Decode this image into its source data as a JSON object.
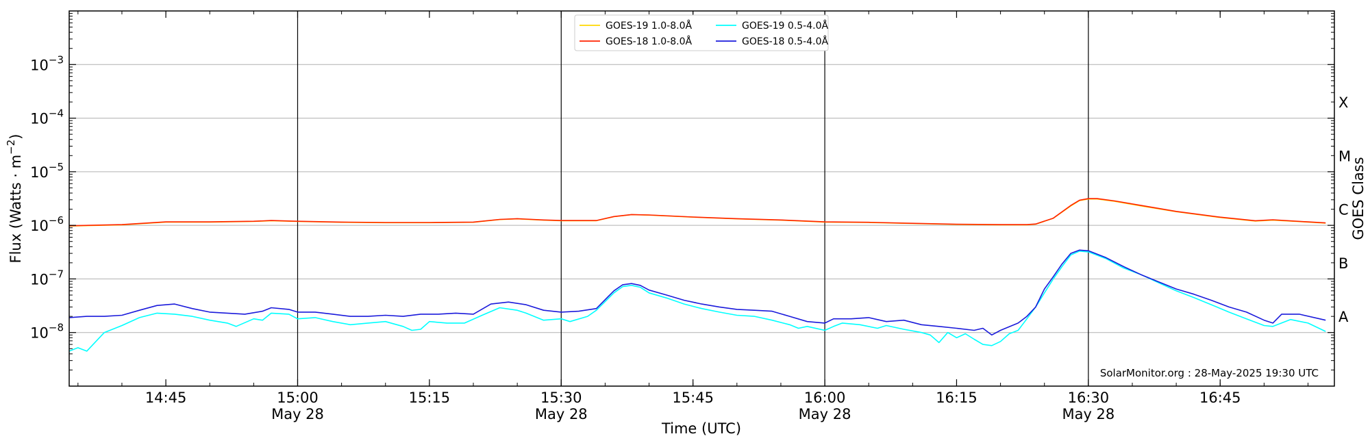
{
  "chart_data": {
    "type": "line",
    "xlabel": "Time (UTC)",
    "ylabel": "Flux (Watts · m",
    "ylabel_exponent": "−2",
    "ylabel_close": ")",
    "right_label": "GOES Class",
    "y_scale": "log",
    "ylim": [
      1e-09,
      0.01
    ],
    "xlim": [
      "14:34",
      "16:58"
    ],
    "y_ticks": [
      {
        "value": 1e-08,
        "base": "10",
        "exp": "−8"
      },
      {
        "value": 1e-07,
        "base": "10",
        "exp": "−7"
      },
      {
        "value": 1e-06,
        "base": "10",
        "exp": "−6"
      },
      {
        "value": 1e-05,
        "base": "10",
        "exp": "−5"
      },
      {
        "value": 0.0001,
        "base": "10",
        "exp": "−4"
      },
      {
        "value": 0.001,
        "base": "10",
        "exp": "−3"
      }
    ],
    "x_ticks": [
      {
        "time": "14:45",
        "label": "14:45",
        "sub": ""
      },
      {
        "time": "15:00",
        "label": "15:00",
        "sub": "May 28"
      },
      {
        "time": "15:15",
        "label": "15:15",
        "sub": ""
      },
      {
        "time": "15:30",
        "label": "15:30",
        "sub": "May 28"
      },
      {
        "time": "15:45",
        "label": "15:45",
        "sub": ""
      },
      {
        "time": "16:00",
        "label": "16:00",
        "sub": "May 28"
      },
      {
        "time": "16:15",
        "label": "16:15",
        "sub": ""
      },
      {
        "time": "16:30",
        "label": "16:30",
        "sub": "May 28"
      },
      {
        "time": "16:45",
        "label": "16:45",
        "sub": ""
      }
    ],
    "vertical_lines": [
      "15:00",
      "15:30",
      "16:00",
      "16:30"
    ],
    "goes_classes": [
      {
        "label": "A",
        "value": 2e-08
      },
      {
        "label": "B",
        "value": 2e-07
      },
      {
        "label": "C",
        "value": 2e-06
      },
      {
        "label": "M",
        "value": 2e-05
      },
      {
        "label": "X",
        "value": 0.0002
      }
    ],
    "grid": true,
    "legend_position": "top-center",
    "series": [
      {
        "name": "GOES-19 1.0-8.0Å",
        "color": "#ffd700",
        "points": [
          [
            "14:34",
            9.7e-07
          ],
          [
            "14:40",
            1.02e-06
          ],
          [
            "14:45",
            1.15e-06
          ],
          [
            "14:50",
            1.15e-06
          ],
          [
            "14:55",
            1.18e-06
          ],
          [
            "14:57",
            1.22e-06
          ],
          [
            "15:00",
            1.18e-06
          ],
          [
            "15:05",
            1.14e-06
          ],
          [
            "15:10",
            1.12e-06
          ],
          [
            "15:15",
            1.12e-06
          ],
          [
            "15:20",
            1.14e-06
          ],
          [
            "15:23",
            1.28e-06
          ],
          [
            "15:25",
            1.32e-06
          ],
          [
            "15:28",
            1.25e-06
          ],
          [
            "15:30",
            1.22e-06
          ],
          [
            "15:34",
            1.22e-06
          ],
          [
            "15:36",
            1.45e-06
          ],
          [
            "15:38",
            1.58e-06
          ],
          [
            "15:40",
            1.55e-06
          ],
          [
            "15:45",
            1.42e-06
          ],
          [
            "15:50",
            1.32e-06
          ],
          [
            "15:55",
            1.25e-06
          ],
          [
            "16:00",
            1.15e-06
          ],
          [
            "16:05",
            1.13e-06
          ],
          [
            "16:10",
            1.08e-06
          ],
          [
            "16:15",
            1.04e-06
          ],
          [
            "16:20",
            1.02e-06
          ],
          [
            "16:23",
            1.02e-06
          ],
          [
            "16:24",
            1.05e-06
          ],
          [
            "16:26",
            1.35e-06
          ],
          [
            "16:28",
            2.3e-06
          ],
          [
            "16:29",
            2.9e-06
          ],
          [
            "16:30",
            3.1e-06
          ],
          [
            "16:31",
            3.1e-06
          ],
          [
            "16:33",
            2.8e-06
          ],
          [
            "16:36",
            2.3e-06
          ],
          [
            "16:40",
            1.8e-06
          ],
          [
            "16:45",
            1.4e-06
          ],
          [
            "16:49",
            1.2e-06
          ],
          [
            "16:51",
            1.25e-06
          ],
          [
            "16:55",
            1.15e-06
          ],
          [
            "16:57",
            1.1e-06
          ]
        ]
      },
      {
        "name": "GOES-18 1.0-8.0Å",
        "color": "#ff2200",
        "points": [
          [
            "14:34",
            9.8e-07
          ],
          [
            "14:40",
            1.03e-06
          ],
          [
            "14:45",
            1.16e-06
          ],
          [
            "14:50",
            1.16e-06
          ],
          [
            "14:55",
            1.19e-06
          ],
          [
            "14:57",
            1.23e-06
          ],
          [
            "15:00",
            1.19e-06
          ],
          [
            "15:05",
            1.15e-06
          ],
          [
            "15:10",
            1.13e-06
          ],
          [
            "15:15",
            1.13e-06
          ],
          [
            "15:20",
            1.15e-06
          ],
          [
            "15:23",
            1.29e-06
          ],
          [
            "15:25",
            1.33e-06
          ],
          [
            "15:28",
            1.26e-06
          ],
          [
            "15:30",
            1.23e-06
          ],
          [
            "15:34",
            1.23e-06
          ],
          [
            "15:36",
            1.46e-06
          ],
          [
            "15:38",
            1.59e-06
          ],
          [
            "15:40",
            1.56e-06
          ],
          [
            "15:45",
            1.43e-06
          ],
          [
            "15:50",
            1.33e-06
          ],
          [
            "15:55",
            1.26e-06
          ],
          [
            "16:00",
            1.16e-06
          ],
          [
            "16:05",
            1.14e-06
          ],
          [
            "16:10",
            1.09e-06
          ],
          [
            "16:15",
            1.05e-06
          ],
          [
            "16:20",
            1.03e-06
          ],
          [
            "16:23",
            1.03e-06
          ],
          [
            "16:24",
            1.06e-06
          ],
          [
            "16:26",
            1.36e-06
          ],
          [
            "16:28",
            2.35e-06
          ],
          [
            "16:29",
            2.95e-06
          ],
          [
            "16:30",
            3.15e-06
          ],
          [
            "16:31",
            3.15e-06
          ],
          [
            "16:33",
            2.85e-06
          ],
          [
            "16:36",
            2.35e-06
          ],
          [
            "16:40",
            1.82e-06
          ],
          [
            "16:45",
            1.42e-06
          ],
          [
            "16:49",
            1.22e-06
          ],
          [
            "16:51",
            1.27e-06
          ],
          [
            "16:55",
            1.16e-06
          ],
          [
            "16:57",
            1.11e-06
          ]
        ]
      },
      {
        "name": "GOES-19 0.5-4.0Å",
        "color": "#00ffff",
        "points": [
          [
            "14:34",
            4.5e-09
          ],
          [
            "14:35",
            5.2e-09
          ],
          [
            "14:36",
            4.5e-09
          ],
          [
            "14:38",
            1e-08
          ],
          [
            "14:40",
            1.35e-08
          ],
          [
            "14:42",
            1.9e-08
          ],
          [
            "14:44",
            2.3e-08
          ],
          [
            "14:46",
            2.2e-08
          ],
          [
            "14:48",
            2e-08
          ],
          [
            "14:50",
            1.7e-08
          ],
          [
            "14:52",
            1.5e-08
          ],
          [
            "14:53",
            1.3e-08
          ],
          [
            "14:55",
            1.8e-08
          ],
          [
            "14:56",
            1.7e-08
          ],
          [
            "14:57",
            2.3e-08
          ],
          [
            "14:59",
            2.2e-08
          ],
          [
            "15:00",
            1.8e-08
          ],
          [
            "15:02",
            1.9e-08
          ],
          [
            "15:04",
            1.6e-08
          ],
          [
            "15:06",
            1.4e-08
          ],
          [
            "15:08",
            1.5e-08
          ],
          [
            "15:10",
            1.6e-08
          ],
          [
            "15:12",
            1.3e-08
          ],
          [
            "15:13",
            1.1e-08
          ],
          [
            "15:14",
            1.15e-08
          ],
          [
            "15:15",
            1.6e-08
          ],
          [
            "15:17",
            1.5e-08
          ],
          [
            "15:19",
            1.5e-08
          ],
          [
            "15:21",
            2.1e-08
          ],
          [
            "15:23",
            2.9e-08
          ],
          [
            "15:25",
            2.6e-08
          ],
          [
            "15:26",
            2.3e-08
          ],
          [
            "15:28",
            1.7e-08
          ],
          [
            "15:30",
            1.8e-08
          ],
          [
            "15:31",
            1.6e-08
          ],
          [
            "15:33",
            2e-08
          ],
          [
            "15:34",
            2.6e-08
          ],
          [
            "15:36",
            5.5e-08
          ],
          [
            "15:37",
            7.2e-08
          ],
          [
            "15:38",
            7.6e-08
          ],
          [
            "15:39",
            7e-08
          ],
          [
            "15:40",
            5.5e-08
          ],
          [
            "15:42",
            4.4e-08
          ],
          [
            "15:44",
            3.4e-08
          ],
          [
            "15:46",
            2.8e-08
          ],
          [
            "15:48",
            2.4e-08
          ],
          [
            "15:50",
            2.1e-08
          ],
          [
            "15:52",
            2e-08
          ],
          [
            "15:54",
            1.7e-08
          ],
          [
            "15:56",
            1.4e-08
          ],
          [
            "15:57",
            1.2e-08
          ],
          [
            "15:58",
            1.3e-08
          ],
          [
            "16:00",
            1.1e-08
          ],
          [
            "16:01",
            1.3e-08
          ],
          [
            "16:02",
            1.5e-08
          ],
          [
            "16:04",
            1.4e-08
          ],
          [
            "16:06",
            1.2e-08
          ],
          [
            "16:07",
            1.35e-08
          ],
          [
            "16:09",
            1.15e-08
          ],
          [
            "16:11",
            1e-08
          ],
          [
            "16:12",
            9e-09
          ],
          [
            "16:13",
            6.5e-09
          ],
          [
            "16:14",
            1e-08
          ],
          [
            "16:15",
            8e-09
          ],
          [
            "16:16",
            9.5e-09
          ],
          [
            "16:17",
            7.5e-09
          ],
          [
            "16:18",
            6e-09
          ],
          [
            "16:19",
            5.7e-09
          ],
          [
            "16:20",
            6.8e-09
          ],
          [
            "16:21",
            9.5e-09
          ],
          [
            "16:22",
            1.1e-08
          ],
          [
            "16:23",
            1.8e-08
          ],
          [
            "16:24",
            3e-08
          ],
          [
            "16:25",
            5.5e-08
          ],
          [
            "16:26",
            1e-07
          ],
          [
            "16:27",
            1.7e-07
          ],
          [
            "16:28",
            2.8e-07
          ],
          [
            "16:29",
            3.3e-07
          ],
          [
            "16:30",
            3.2e-07
          ],
          [
            "16:32",
            2.4e-07
          ],
          [
            "16:34",
            1.6e-07
          ],
          [
            "16:36",
            1.2e-07
          ],
          [
            "16:38",
            8.5e-08
          ],
          [
            "16:40",
            6e-08
          ],
          [
            "16:42",
            4.5e-08
          ],
          [
            "16:44",
            3.3e-08
          ],
          [
            "16:46",
            2.4e-08
          ],
          [
            "16:48",
            1.8e-08
          ],
          [
            "16:50",
            1.35e-08
          ],
          [
            "16:51",
            1.3e-08
          ],
          [
            "16:53",
            1.75e-08
          ],
          [
            "16:55",
            1.5e-08
          ],
          [
            "16:57",
            1.05e-08
          ]
        ]
      },
      {
        "name": "GOES-18 0.5-4.0Å",
        "color": "#1a1adb",
        "points": [
          [
            "14:34",
            1.9e-08
          ],
          [
            "14:36",
            2e-08
          ],
          [
            "14:38",
            2e-08
          ],
          [
            "14:40",
            2.1e-08
          ],
          [
            "14:42",
            2.6e-08
          ],
          [
            "14:44",
            3.2e-08
          ],
          [
            "14:46",
            3.4e-08
          ],
          [
            "14:48",
            2.8e-08
          ],
          [
            "14:50",
            2.4e-08
          ],
          [
            "14:52",
            2.3e-08
          ],
          [
            "14:54",
            2.2e-08
          ],
          [
            "14:56",
            2.5e-08
          ],
          [
            "14:57",
            2.9e-08
          ],
          [
            "14:59",
            2.7e-08
          ],
          [
            "15:00",
            2.4e-08
          ],
          [
            "15:02",
            2.4e-08
          ],
          [
            "15:04",
            2.2e-08
          ],
          [
            "15:06",
            2e-08
          ],
          [
            "15:08",
            2e-08
          ],
          [
            "15:10",
            2.1e-08
          ],
          [
            "15:12",
            2e-08
          ],
          [
            "15:14",
            2.2e-08
          ],
          [
            "15:16",
            2.2e-08
          ],
          [
            "15:18",
            2.3e-08
          ],
          [
            "15:20",
            2.2e-08
          ],
          [
            "15:22",
            3.4e-08
          ],
          [
            "15:24",
            3.7e-08
          ],
          [
            "15:26",
            3.3e-08
          ],
          [
            "15:28",
            2.6e-08
          ],
          [
            "15:30",
            2.4e-08
          ],
          [
            "15:32",
            2.5e-08
          ],
          [
            "15:34",
            2.8e-08
          ],
          [
            "15:36",
            6e-08
          ],
          [
            "15:37",
            7.8e-08
          ],
          [
            "15:38",
            8.2e-08
          ],
          [
            "15:39",
            7.6e-08
          ],
          [
            "15:40",
            6.2e-08
          ],
          [
            "15:42",
            5e-08
          ],
          [
            "15:44",
            4e-08
          ],
          [
            "15:46",
            3.4e-08
          ],
          [
            "15:48",
            3e-08
          ],
          [
            "15:50",
            2.7e-08
          ],
          [
            "15:52",
            2.6e-08
          ],
          [
            "15:54",
            2.5e-08
          ],
          [
            "15:56",
            2e-08
          ],
          [
            "15:58",
            1.6e-08
          ],
          [
            "16:00",
            1.5e-08
          ],
          [
            "16:01",
            1.8e-08
          ],
          [
            "16:03",
            1.8e-08
          ],
          [
            "16:05",
            1.9e-08
          ],
          [
            "16:07",
            1.6e-08
          ],
          [
            "16:09",
            1.7e-08
          ],
          [
            "16:11",
            1.4e-08
          ],
          [
            "16:13",
            1.3e-08
          ],
          [
            "16:15",
            1.2e-08
          ],
          [
            "16:17",
            1.1e-08
          ],
          [
            "16:18",
            1.2e-08
          ],
          [
            "16:19",
            9e-09
          ],
          [
            "16:20",
            1.1e-08
          ],
          [
            "16:22",
            1.5e-08
          ],
          [
            "16:23",
            2e-08
          ],
          [
            "16:24",
            3e-08
          ],
          [
            "16:25",
            6.5e-08
          ],
          [
            "16:26",
            1.1e-07
          ],
          [
            "16:27",
            1.9e-07
          ],
          [
            "16:28",
            3e-07
          ],
          [
            "16:29",
            3.45e-07
          ],
          [
            "16:30",
            3.35e-07
          ],
          [
            "16:32",
            2.5e-07
          ],
          [
            "16:34",
            1.7e-07
          ],
          [
            "16:36",
            1.2e-07
          ],
          [
            "16:38",
            8.8e-08
          ],
          [
            "16:40",
            6.5e-08
          ],
          [
            "16:42",
            5.2e-08
          ],
          [
            "16:44",
            4e-08
          ],
          [
            "16:46",
            3e-08
          ],
          [
            "16:48",
            2.4e-08
          ],
          [
            "16:50",
            1.7e-08
          ],
          [
            "16:51",
            1.5e-08
          ],
          [
            "16:52",
            2.2e-08
          ],
          [
            "16:54",
            2.2e-08
          ],
          [
            "16:57",
            1.7e-08
          ]
        ]
      }
    ],
    "annotation": "SolarMonitor.org : 28-May-2025 19:30 UTC"
  }
}
